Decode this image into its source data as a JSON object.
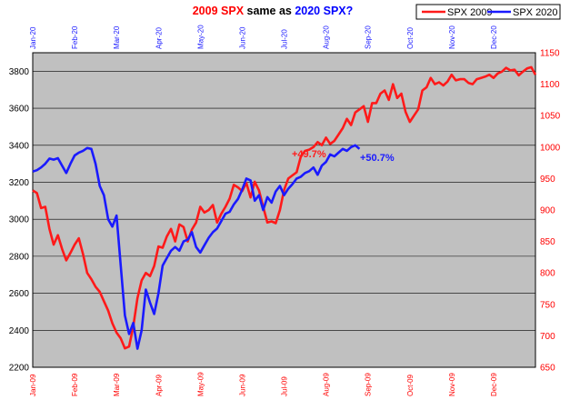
{
  "title": {
    "part1": "2009 SPX",
    "part2": " same as ",
    "part3": "2020 SPX?",
    "color1": "#ff0000",
    "color3": "#0000ff"
  },
  "legend": [
    {
      "label": "SPX 2009",
      "color": "#ff1a1a"
    },
    {
      "label": "SPX 2020",
      "color": "#1a1aff"
    }
  ],
  "chart_data": {
    "type": "line",
    "title": "2009 SPX same as 2020 SPX?",
    "background": "#c0c0c0",
    "grid": true,
    "legend_position": "top-right",
    "left_axis": {
      "ticks": [
        2200,
        2400,
        2600,
        2800,
        3000,
        3200,
        3400,
        3600,
        3800
      ],
      "range": [
        2200,
        3900
      ],
      "color": "#000000"
    },
    "right_axis": {
      "ticks": [
        650,
        700,
        750,
        800,
        850,
        900,
        950,
        1000,
        1050,
        1100,
        1150
      ],
      "range": [
        650,
        1150
      ],
      "color": "#ff0000"
    },
    "top_axis_labels": [
      "Jan-20",
      "Feb-20",
      "Mar-20",
      "Apr-20",
      "May-20",
      "Jun-20",
      "Jul-20",
      "Aug-20",
      "Sep-20",
      "Oct-20",
      "Nov-20",
      "Dec-20"
    ],
    "bottom_axis_labels": [
      "Jan-09",
      "Feb-09",
      "Mar-09",
      "Apr-09",
      "May-09",
      "Jun-09",
      "Jul-09",
      "Aug-09",
      "Sep-09",
      "Oct-09",
      "Nov-09",
      "Dec-09"
    ],
    "series": [
      {
        "name": "SPX 2009",
        "axis": "right",
        "color": "#ff1a1a",
        "x_month": [
          0.0,
          0.1,
          0.2,
          0.3,
          0.4,
          0.5,
          0.6,
          0.7,
          0.8,
          0.9,
          1.0,
          1.1,
          1.2,
          1.3,
          1.4,
          1.5,
          1.6,
          1.7,
          1.8,
          1.9,
          2.0,
          2.1,
          2.2,
          2.3,
          2.4,
          2.5,
          2.6,
          2.7,
          2.8,
          2.9,
          3.0,
          3.1,
          3.2,
          3.3,
          3.4,
          3.5,
          3.6,
          3.7,
          3.8,
          3.9,
          4.0,
          4.1,
          4.2,
          4.3,
          4.4,
          4.5,
          4.6,
          4.7,
          4.8,
          4.9,
          5.0,
          5.1,
          5.2,
          5.3,
          5.4,
          5.5,
          5.6,
          5.7,
          5.8,
          5.9,
          6.0,
          6.1,
          6.2,
          6.3,
          6.4,
          6.5,
          6.6,
          6.7,
          6.8,
          6.9,
          7.0,
          7.1,
          7.2,
          7.3,
          7.4,
          7.5,
          7.6,
          7.7,
          7.8,
          7.9,
          8.0,
          8.1,
          8.2,
          8.3,
          8.4,
          8.5,
          8.6,
          8.7,
          8.8,
          8.9,
          9.0,
          9.1,
          9.2,
          9.3,
          9.4,
          9.5,
          9.6,
          9.7,
          9.8,
          9.9,
          10.0,
          10.1,
          10.2,
          10.3,
          10.4,
          10.5,
          10.6,
          10.7,
          10.8,
          10.9,
          11.0,
          11.1,
          11.2,
          11.3,
          11.4,
          11.5,
          11.6,
          11.7,
          11.8,
          11.9,
          12.0
        ],
        "values": [
          931,
          927,
          903,
          905,
          870,
          845,
          860,
          838,
          820,
          832,
          845,
          855,
          830,
          800,
          790,
          778,
          770,
          755,
          740,
          720,
          705,
          696,
          680,
          683,
          715,
          760,
          788,
          800,
          795,
          811,
          842,
          840,
          858,
          870,
          850,
          877,
          873,
          850,
          869,
          880,
          905,
          896,
          900,
          908,
          880,
          894,
          905,
          918,
          940,
          936,
          930,
          943,
          920,
          945,
          931,
          905,
          880,
          882,
          879,
          900,
          932,
          950,
          955,
          960,
          985,
          994,
          996,
          1000,
          1008,
          1003,
          1015,
          1005,
          1010,
          1020,
          1030,
          1045,
          1035,
          1055,
          1060,
          1065,
          1040,
          1070,
          1070,
          1085,
          1090,
          1075,
          1100,
          1078,
          1085,
          1056,
          1040,
          1050,
          1060,
          1090,
          1095,
          1110,
          1100,
          1103,
          1098,
          1104,
          1115,
          1106,
          1108,
          1108,
          1102,
          1100,
          1108,
          1110,
          1112,
          1115,
          1110,
          1117,
          1120,
          1126,
          1122,
          1123,
          1114,
          1120,
          1125,
          1127,
          1115
        ]
      },
      {
        "name": "SPX 2020",
        "axis": "left",
        "color": "#1a1aff",
        "x_month": [
          0.0,
          0.1,
          0.2,
          0.3,
          0.4,
          0.5,
          0.6,
          0.7,
          0.8,
          0.9,
          1.0,
          1.1,
          1.2,
          1.3,
          1.4,
          1.5,
          1.6,
          1.7,
          1.8,
          1.9,
          2.0,
          2.1,
          2.2,
          2.3,
          2.4,
          2.5,
          2.6,
          2.7,
          2.8,
          2.9,
          3.0,
          3.1,
          3.2,
          3.3,
          3.4,
          3.5,
          3.6,
          3.7,
          3.8,
          3.9,
          4.0,
          4.1,
          4.2,
          4.3,
          4.4,
          4.5,
          4.6,
          4.7,
          4.8,
          4.9,
          5.0,
          5.1,
          5.2,
          5.3,
          5.4,
          5.5,
          5.6,
          5.7,
          5.8,
          5.9,
          6.0,
          6.1,
          6.2,
          6.3,
          6.4,
          6.5,
          6.6,
          6.7,
          6.8,
          6.9,
          7.0,
          7.1,
          7.2,
          7.3,
          7.4,
          7.5,
          7.6,
          7.7,
          7.8
        ],
        "values": [
          3258,
          3265,
          3280,
          3300,
          3328,
          3322,
          3330,
          3290,
          3250,
          3300,
          3345,
          3360,
          3370,
          3385,
          3380,
          3300,
          3180,
          3130,
          3000,
          2960,
          3020,
          2750,
          2480,
          2380,
          2440,
          2300,
          2400,
          2620,
          2550,
          2488,
          2600,
          2750,
          2790,
          2830,
          2850,
          2830,
          2880,
          2890,
          2930,
          2850,
          2820,
          2860,
          2900,
          2930,
          2950,
          2990,
          3030,
          3040,
          3080,
          3110,
          3160,
          3220,
          3210,
          3100,
          3130,
          3050,
          3120,
          3090,
          3150,
          3180,
          3130,
          3165,
          3190,
          3220,
          3230,
          3250,
          3260,
          3280,
          3240,
          3290,
          3310,
          3350,
          3340,
          3360,
          3380,
          3370,
          3390,
          3400,
          3380
        ]
      }
    ],
    "annotations": [
      {
        "text": "+49.7%",
        "color": "#ff1a1a"
      },
      {
        "text": "+50.7%",
        "color": "#1a1aff"
      }
    ]
  }
}
